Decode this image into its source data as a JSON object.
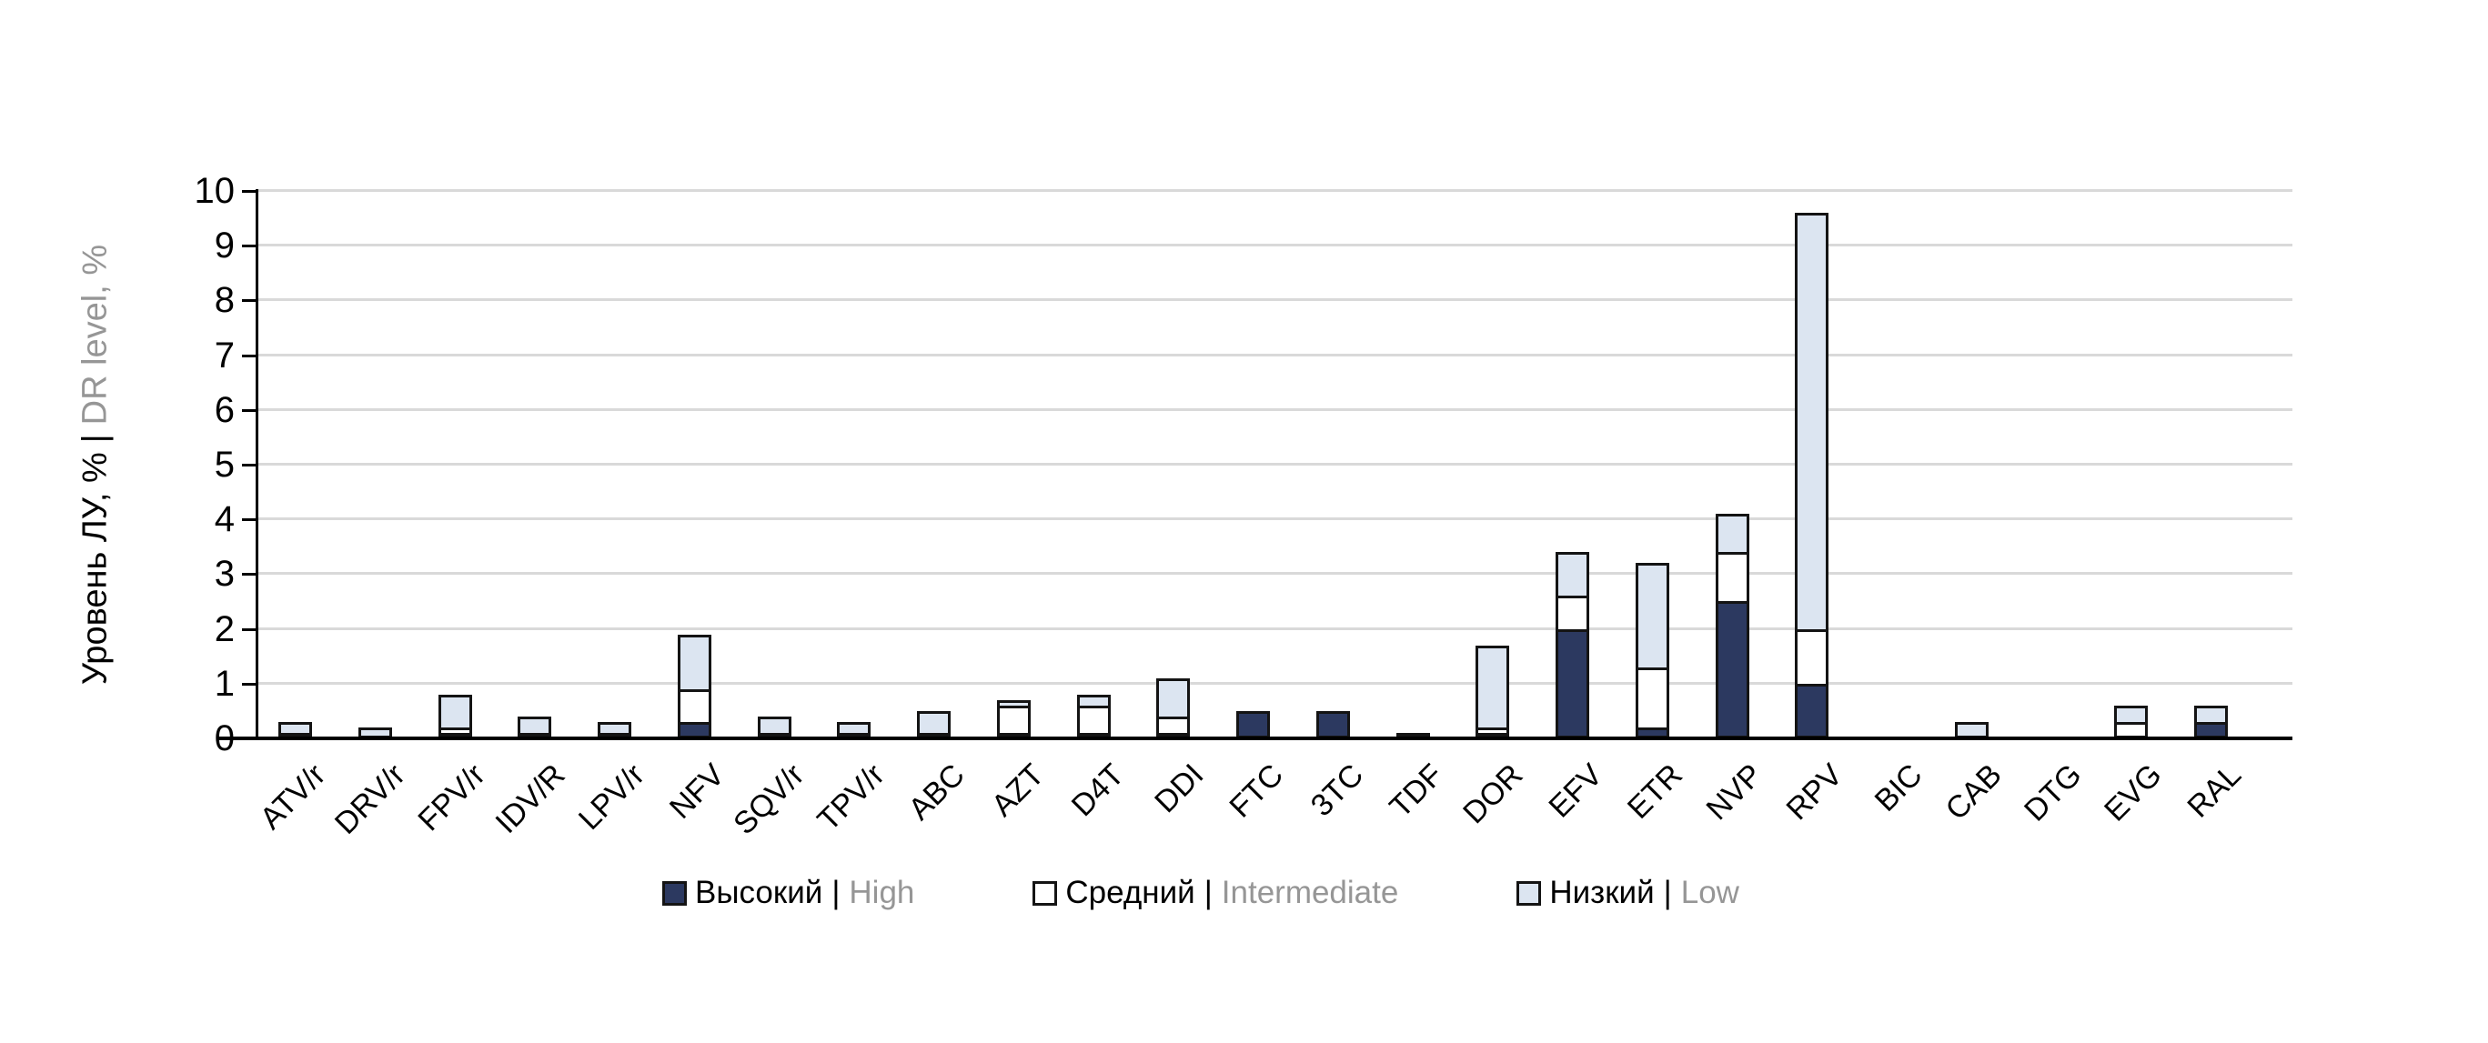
{
  "y_axis": {
    "title_ru": "Уровень ЛУ, %",
    "title_sep": "|",
    "title_en": "DR level, %",
    "tick_labels": [
      "0",
      "1",
      "2",
      "3",
      "4",
      "5",
      "6",
      "7",
      "8",
      "9",
      "10"
    ]
  },
  "legend": {
    "items": [
      {
        "key": "high",
        "ru": "Высокий",
        "sep": "|",
        "en": "High",
        "color": "#2C3960"
      },
      {
        "key": "intermediate",
        "ru": "Средний",
        "sep": "|",
        "en": "Intermediate",
        "color": "#FFFFFF"
      },
      {
        "key": "low",
        "ru": "Низкий",
        "sep": "|",
        "en": "Low",
        "color": "#DCE5F1"
      }
    ]
  },
  "colors": {
    "high": "#2C3960",
    "intermediate": "#FFFFFF",
    "low": "#DCE5F1",
    "segment_border": "#141414",
    "gridline": "#D9D9D9",
    "axis": "#000000",
    "secondary_text": "#969696"
  },
  "chart_data": {
    "type": "bar",
    "stacked": true,
    "title": "",
    "xlabel": "",
    "ylabel": "Уровень ЛУ, % | DR level, %",
    "ylim": [
      0,
      10
    ],
    "grid": true,
    "legend_position": "bottom",
    "categories": [
      "ATV/r",
      "DRV/r",
      "FPV/r",
      "IDV/R",
      "LPV/r",
      "NFV",
      "SQV/r",
      "TPV/r",
      "ABC",
      "AZT",
      "D4T",
      "DDI",
      "FTC",
      "3TC",
      "TDF",
      "DOR",
      "EFV",
      "ETR",
      "NVP",
      "RPV",
      "BIC",
      "CAB",
      "DTG",
      "EVG",
      "RAL"
    ],
    "series": [
      {
        "name": "Высокий | High",
        "color": "#2C3960",
        "values": [
          0.1,
          0,
          0.1,
          0.1,
          0,
          0.3,
          0.1,
          0,
          0.1,
          0.1,
          0.1,
          0.1,
          0.5,
          0.5,
          0.1,
          0.1,
          2.0,
          0.2,
          2.5,
          1.0,
          0,
          0,
          0,
          0,
          0.3
        ]
      },
      {
        "name": "Средний | Intermediate",
        "color": "#FFFFFF",
        "values": [
          0,
          0,
          0.1,
          0,
          0.1,
          0.6,
          0,
          0.1,
          0,
          0.5,
          0.5,
          0.3,
          0,
          0,
          0,
          0.1,
          0.6,
          1.1,
          0.9,
          1.0,
          0,
          0,
          0,
          0.3,
          0
        ]
      },
      {
        "name": "Низкий | Low",
        "color": "#DCE5F1",
        "values": [
          0.2,
          0.2,
          0.6,
          0.3,
          0.2,
          1.0,
          0.3,
          0.2,
          0.4,
          0.1,
          0.2,
          0.7,
          0,
          0,
          0,
          1.5,
          0.8,
          1.9,
          0.7,
          7.6,
          0,
          0.3,
          0,
          0.3,
          0.3
        ]
      }
    ],
    "totals": [
      0.3,
      0.2,
      0.8,
      0.4,
      0.3,
      1.9,
      0.4,
      0.3,
      0.5,
      0.7,
      0.8,
      1.1,
      0.5,
      0.5,
      0.1,
      1.7,
      3.4,
      3.2,
      4.1,
      9.6,
      0,
      0.3,
      0,
      0.6,
      0.6
    ]
  }
}
